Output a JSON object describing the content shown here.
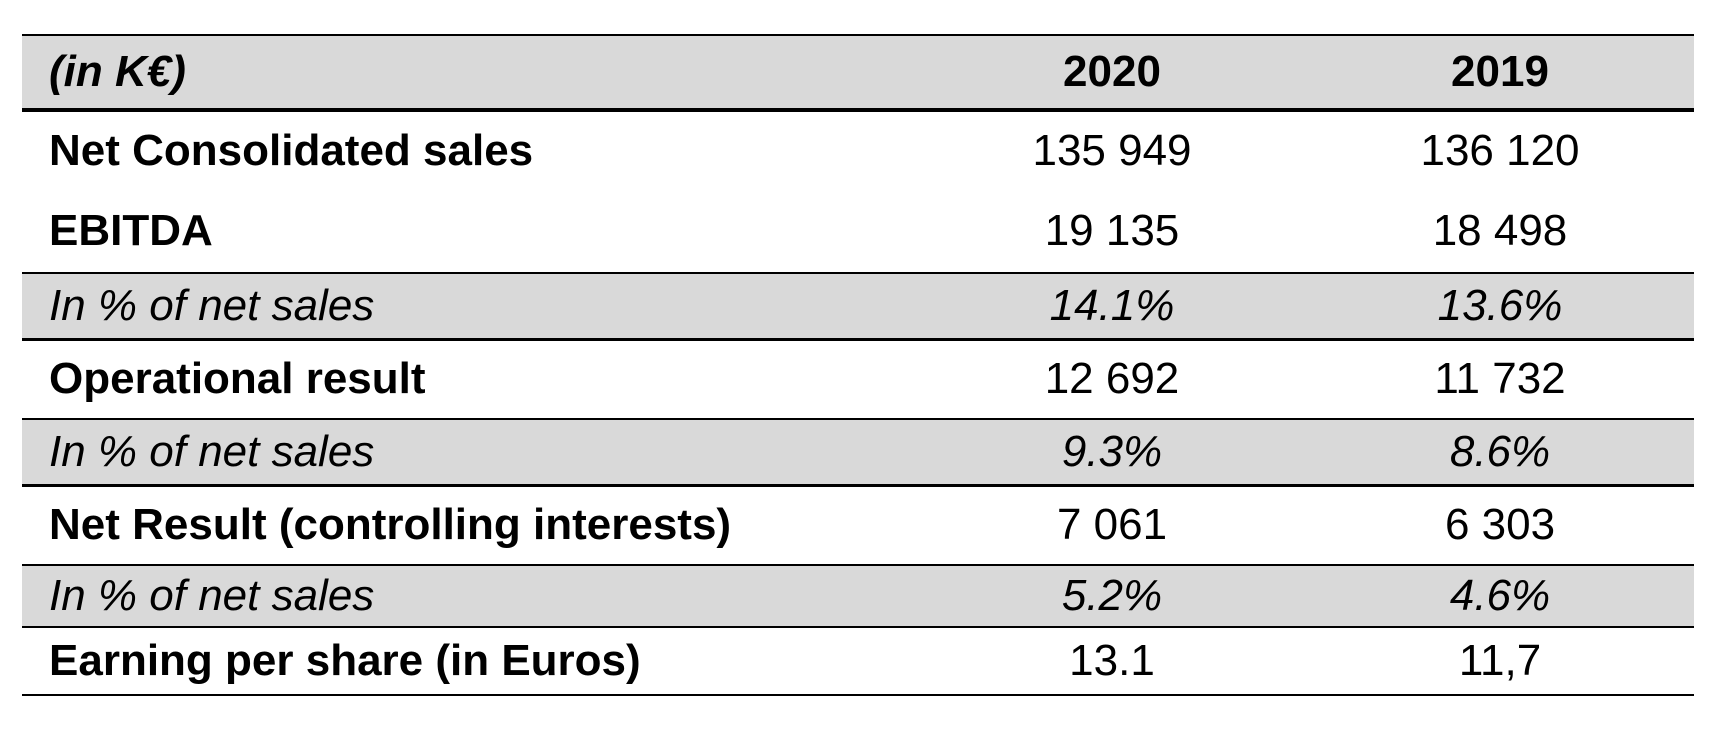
{
  "table": {
    "header": {
      "unit_label": "(in K€)",
      "col_2020": "2020",
      "col_2019": "2019"
    },
    "rows": [
      {
        "label": "Net Consolidated sales",
        "y2020": "135 949",
        "y2019": "136 120"
      },
      {
        "label": "EBITDA",
        "y2020": "19 135",
        "y2019": "18 498"
      },
      {
        "label": "In % of net sales",
        "y2020": "14.1%",
        "y2019": "13.6%"
      },
      {
        "label": "Operational result",
        "y2020": "12 692",
        "y2019": "11 732"
      },
      {
        "label": "In % of net sales",
        "y2020": "9.3%",
        "y2019": "8.6%"
      },
      {
        "label": "Net Result (controlling interests)",
        "y2020": "7 061",
        "y2019": "6 303"
      },
      {
        "label": "In % of net sales",
        "y2020": "5.2%",
        "y2019": "4.6%"
      },
      {
        "label": "Earning per share (in Euros)",
        "y2020": "13.1",
        "y2019": "11,7"
      }
    ]
  },
  "colors": {
    "shaded_row": "#d9d9d9",
    "rule": "#000000"
  }
}
